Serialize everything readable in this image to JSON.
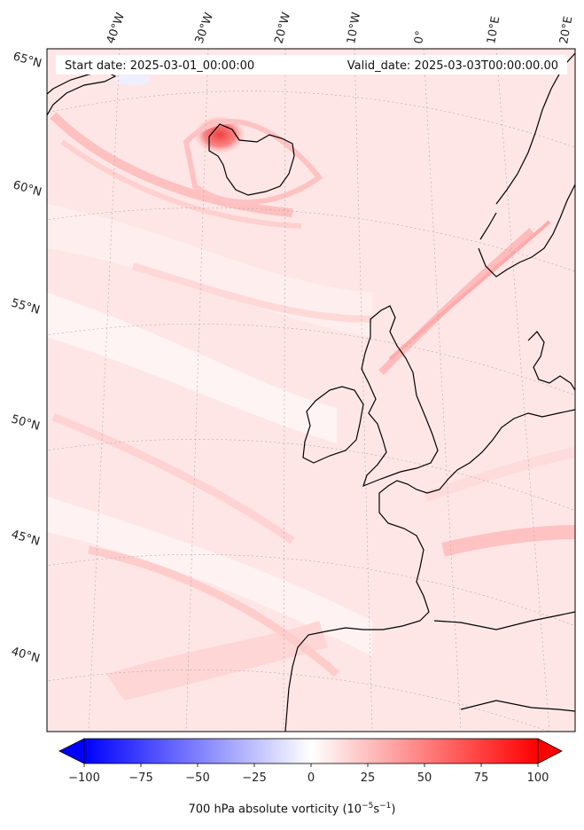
{
  "header": {
    "start_label": "Start date: 2025-03-01_00:00:00",
    "valid_label": "Valid_date: 2025-03-03T00:00:00.00"
  },
  "lon_labels": [
    "40°W",
    "30°W",
    "20°W",
    "10°W",
    "0°",
    "10°E",
    "20°E"
  ],
  "lat_labels": [
    "65°N",
    "60°N",
    "55°N",
    "50°N",
    "45°N",
    "40°N"
  ],
  "colorbar": {
    "title_main": "700 hPa absolute vorticity (10",
    "title_exp1": "−5",
    "title_mid": "s",
    "title_exp2": "−1",
    "title_end": ")",
    "ticks": [
      "−100",
      "−75",
      "−50",
      "−25",
      "0",
      "25",
      "50",
      "75",
      "100"
    ],
    "min": -100,
    "max": 100,
    "colors": {
      "low": "#0000ff",
      "mid": "#ffffff",
      "high": "#ff0000"
    }
  },
  "map": {
    "background_color": "#ffe3e3",
    "coastline_color": "#000000"
  }
}
